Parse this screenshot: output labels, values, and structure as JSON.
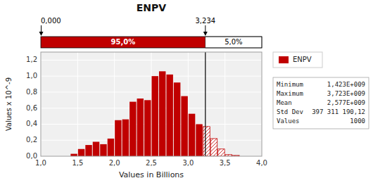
{
  "chart_data": {
    "type": "histogram",
    "title": "ENPV",
    "x_label": "Values in Billions",
    "y_label": "Values x 10^-9",
    "xlim": [
      1.0,
      4.0
    ],
    "ylim": [
      0.0,
      1.3
    ],
    "xticks": [
      {
        "value": 1.0,
        "label": "1,0"
      },
      {
        "value": 1.5,
        "label": "1,5"
      },
      {
        "value": 2.0,
        "label": "2,0"
      },
      {
        "value": 2.5,
        "label": "2,5"
      },
      {
        "value": 3.0,
        "label": "3,0"
      },
      {
        "value": 3.5,
        "label": "3,5"
      },
      {
        "value": 4.0,
        "label": "4,0"
      }
    ],
    "yticks": [
      {
        "value": 0.0,
        "label": "0,0"
      },
      {
        "value": 0.2,
        "label": "0,2"
      },
      {
        "value": 0.4,
        "label": "0,4"
      },
      {
        "value": 0.6,
        "label": "0,6"
      },
      {
        "value": 0.8,
        "label": "0,8"
      },
      {
        "value": 1.0,
        "label": "1,0"
      },
      {
        "value": 1.2,
        "label": "1,2"
      }
    ],
    "grid": true,
    "legend": "right",
    "background_color": "#f0f0f0",
    "bins": [
      1.0,
      1.1,
      1.2,
      1.3,
      1.4,
      1.5,
      1.6,
      1.7,
      1.8,
      1.9,
      2.0,
      2.1,
      2.2,
      2.3,
      2.4,
      2.5,
      2.6,
      2.7,
      2.8,
      2.9,
      3.0,
      3.1,
      3.2,
      3.3,
      3.4,
      3.5,
      3.6,
      3.7,
      3.8
    ],
    "series": [
      {
        "name": "ENPV",
        "color": "#c00000",
        "values": [
          0.0,
          0.0,
          0.0,
          0.0,
          0.03,
          0.09,
          0.14,
          0.18,
          0.15,
          0.22,
          0.45,
          0.46,
          0.68,
          0.72,
          0.7,
          1.0,
          1.06,
          1.02,
          0.92,
          0.75,
          0.53,
          0.4,
          0.37,
          0.22,
          0.09,
          0.02,
          0.01,
          0.0
        ]
      }
    ],
    "threshold": {
      "value": 3.234,
      "label": "3,234"
    },
    "left_label": "0,000",
    "pct_left": "95,0%",
    "pct_right": "5,0%",
    "stats": [
      {
        "name": "Minimum",
        "label": "1,423E+009"
      },
      {
        "name": "Maximum",
        "label": "3,723E+009"
      },
      {
        "name": "Mean",
        "label": "2,577E+009"
      },
      {
        "name": "Std Dev",
        "label": "397 311 190,12"
      },
      {
        "name": "Values",
        "label": "1000"
      }
    ]
  }
}
